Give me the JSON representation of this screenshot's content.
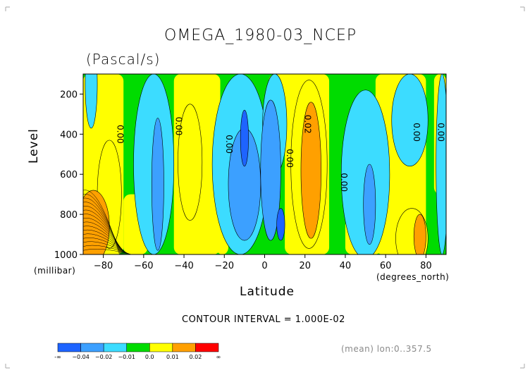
{
  "chart_data": {
    "type": "heatmap",
    "title": "OMEGA_1980-03_NCEP",
    "units": "(Pascal/s)",
    "xlabel": "Latitude",
    "x_units": "(degrees_north)",
    "ylabel": "Level",
    "y_units": "(millibar)",
    "xlim": [
      -90,
      90
    ],
    "ylim": [
      1000,
      100
    ],
    "x_ticks": [
      -80,
      -60,
      -40,
      -20,
      0,
      20,
      40,
      60,
      80
    ],
    "x_tick_labels": [
      "−80",
      "−60",
      "−40",
      "−20",
      "0",
      "20",
      "40",
      "60",
      "80"
    ],
    "y_ticks": [
      200,
      400,
      600,
      800,
      1000
    ],
    "y_tick_labels": [
      "200",
      "400",
      "600",
      "800",
      "1000"
    ],
    "contour_interval_text": "CONTOUR INTERVAL = 1.000E-02",
    "mean_note": "(mean) lon:0..357.5",
    "contour_labels": [
      {
        "text": "0.00",
        "lat": -73,
        "level": 400
      },
      {
        "text": "0.00",
        "lat": -44,
        "level": 360
      },
      {
        "text": "0.00",
        "lat": -19,
        "level": 450
      },
      {
        "text": "0.00",
        "lat": 11,
        "level": 520
      },
      {
        "text": "0.02",
        "lat": 20,
        "level": 350
      },
      {
        "text": "0.00",
        "lat": 38,
        "level": 640
      },
      {
        "text": "0.00",
        "lat": 74,
        "level": 390
      },
      {
        "text": "0.00",
        "lat": 86,
        "level": 390
      }
    ],
    "colorbar": {
      "colors": [
        "#1e64ff",
        "#3ca0ff",
        "#3cdcff",
        "#00dc00",
        "#ffff00",
        "#ffa000",
        "#ff0000"
      ],
      "labels": [
        "-∞",
        "−0.04",
        "−0.02",
        "−0.01",
        "0.0",
        "0.01",
        "0.02",
        "∞"
      ]
    },
    "regions": [
      {
        "level": 0,
        "level_label": "0.00 to 0.01 (yellow)",
        "lat_range": [
          -90,
          90
        ],
        "level_range": [
          100,
          1000
        ]
      },
      {
        "level": -1,
        "lat": -86,
        "level_val": 150,
        "rlat": 3,
        "rlev": 220
      },
      {
        "level": -1,
        "lat": -55,
        "level_val": 550,
        "rlat": 10,
        "rlev": 450
      },
      {
        "level": -1,
        "lat": -12,
        "level_val": 550,
        "rlat": 14,
        "rlev": 450
      },
      {
        "level": -1,
        "lat": 5,
        "level_val": 350,
        "rlat": 6,
        "rlev": 250
      },
      {
        "level": -1,
        "lat": 50,
        "level_val": 600,
        "rlat": 12,
        "rlev": 420
      },
      {
        "level": -1,
        "lat": 72,
        "level_val": 330,
        "rlat": 9,
        "rlev": 230
      },
      {
        "level": -1,
        "lat": 88,
        "level_val": 550,
        "rlat": 3,
        "rlev": 450
      },
      {
        "level": -2,
        "lat": -53,
        "level_val": 650,
        "rlat": 3,
        "rlev": 330
      },
      {
        "level": -2,
        "lat": -10,
        "level_val": 650,
        "rlat": 8,
        "rlev": 280
      },
      {
        "level": -2,
        "lat": 3,
        "level_val": 580,
        "rlat": 5,
        "rlev": 350
      },
      {
        "level": -2,
        "lat": 52,
        "level_val": 750,
        "rlat": 3,
        "rlev": 200
      },
      {
        "level": -3,
        "lat": -10,
        "level_val": 420,
        "rlat": 2,
        "rlev": 140
      },
      {
        "level": -3,
        "lat": 8,
        "level_val": 850,
        "rlat": 2,
        "rlev": 80
      },
      {
        "level": 1,
        "lat": -77,
        "level_val": 700,
        "rlat": 6,
        "rlev": 270
      },
      {
        "level": 1,
        "lat": -37,
        "level_val": 540,
        "rlat": 6,
        "rlev": 290
      },
      {
        "level": 1,
        "lat": 22,
        "level_val": 550,
        "rlat": 9,
        "rlev": 420
      },
      {
        "level": 1,
        "lat": 73,
        "level_val": 920,
        "rlat": 8,
        "rlev": 150
      },
      {
        "level": 2,
        "lat": -85,
        "level_val": 860,
        "rlat": 8,
        "rlev": 180
      },
      {
        "level": 2,
        "lat": 23,
        "level_val": 580,
        "rlat": 5,
        "rlev": 340
      },
      {
        "level": 2,
        "lat": 77,
        "level_val": 910,
        "rlat": 3,
        "rlev": 110
      }
    ]
  }
}
